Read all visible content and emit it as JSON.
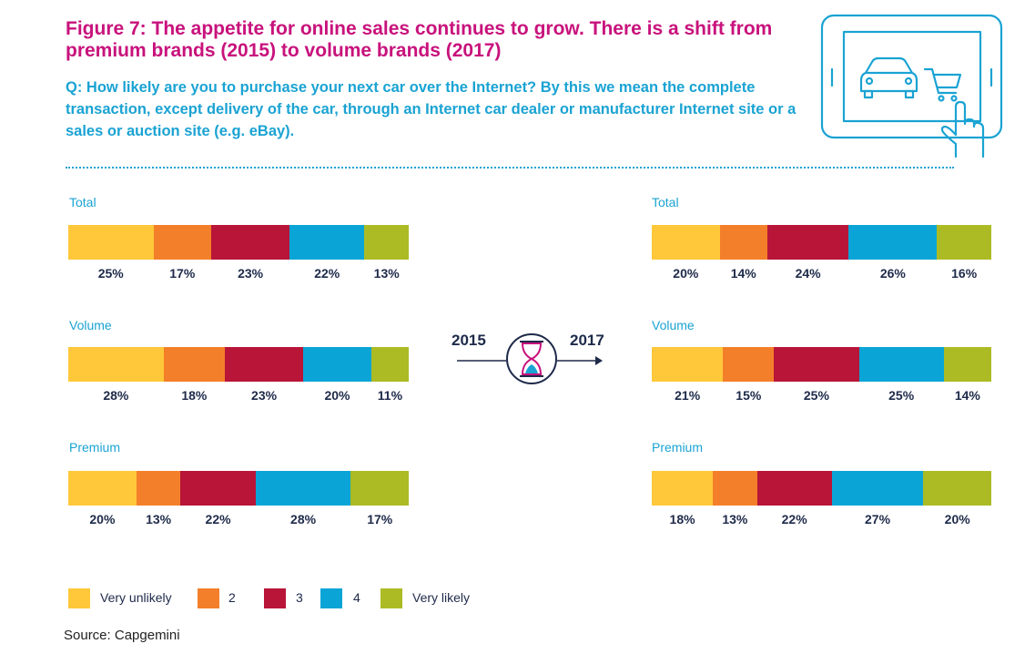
{
  "title": "Figure 7: The appetite for online sales continues to grow. There is a shift from premium brands (2015) to volume brands (2017)",
  "question": "Q: How likely are you to purchase your next car over the Internet? By this we mean the complete transaction, except delivery of the car, through an Internet car dealer or manufacturer Internet site or a sales or auction site (e.g. eBay).",
  "source": "Source: Capgemini",
  "transition": {
    "from_year": "2015",
    "to_year": "2017"
  },
  "colors": {
    "very_unlikely": "#ffc83a",
    "two": "#f47f2a",
    "three": "#b81538",
    "four": "#0aa5d6",
    "very_likely": "#acbb24",
    "title": "#c8127c",
    "accent": "#1aa3d3",
    "text": "#1e2a4a"
  },
  "legend": {
    "items": [
      "Very unlikely",
      "2",
      "3",
      "4",
      "Very likely"
    ]
  },
  "chart_data": [
    {
      "type": "bar",
      "orientation": "horizontal-stacked-100",
      "year": "2015",
      "categories": [
        "Total",
        "Volume",
        "Premium"
      ],
      "series": [
        {
          "name": "Very unlikely",
          "values": [
            25,
            28,
            20
          ]
        },
        {
          "name": "2",
          "values": [
            17,
            18,
            13
          ]
        },
        {
          "name": "3",
          "values": [
            23,
            23,
            22
          ]
        },
        {
          "name": "4",
          "values": [
            22,
            20,
            28
          ]
        },
        {
          "name": "Very likely",
          "values": [
            13,
            11,
            17
          ]
        }
      ],
      "labels": [
        [
          "25%",
          "17%",
          "23%",
          "22%",
          "13%"
        ],
        [
          "28%",
          "18%",
          "23%",
          "20%",
          "11%"
        ],
        [
          "20%",
          "13%",
          "22%",
          "28%",
          "17%"
        ]
      ]
    },
    {
      "type": "bar",
      "orientation": "horizontal-stacked-100",
      "year": "2017",
      "categories": [
        "Total",
        "Volume",
        "Premium"
      ],
      "series": [
        {
          "name": "Very unlikely",
          "values": [
            20,
            21,
            18
          ]
        },
        {
          "name": "2",
          "values": [
            14,
            15,
            13
          ]
        },
        {
          "name": "3",
          "values": [
            24,
            25,
            22
          ]
        },
        {
          "name": "4",
          "values": [
            26,
            25,
            27
          ]
        },
        {
          "name": "Very likely",
          "values": [
            16,
            14,
            20
          ]
        }
      ],
      "labels": [
        [
          "20%",
          "14%",
          "24%",
          "26%",
          "16%"
        ],
        [
          "21%",
          "15%",
          "25%",
          "25%",
          "14%"
        ],
        [
          "18%",
          "13%",
          "22%",
          "27%",
          "20%"
        ]
      ]
    }
  ]
}
